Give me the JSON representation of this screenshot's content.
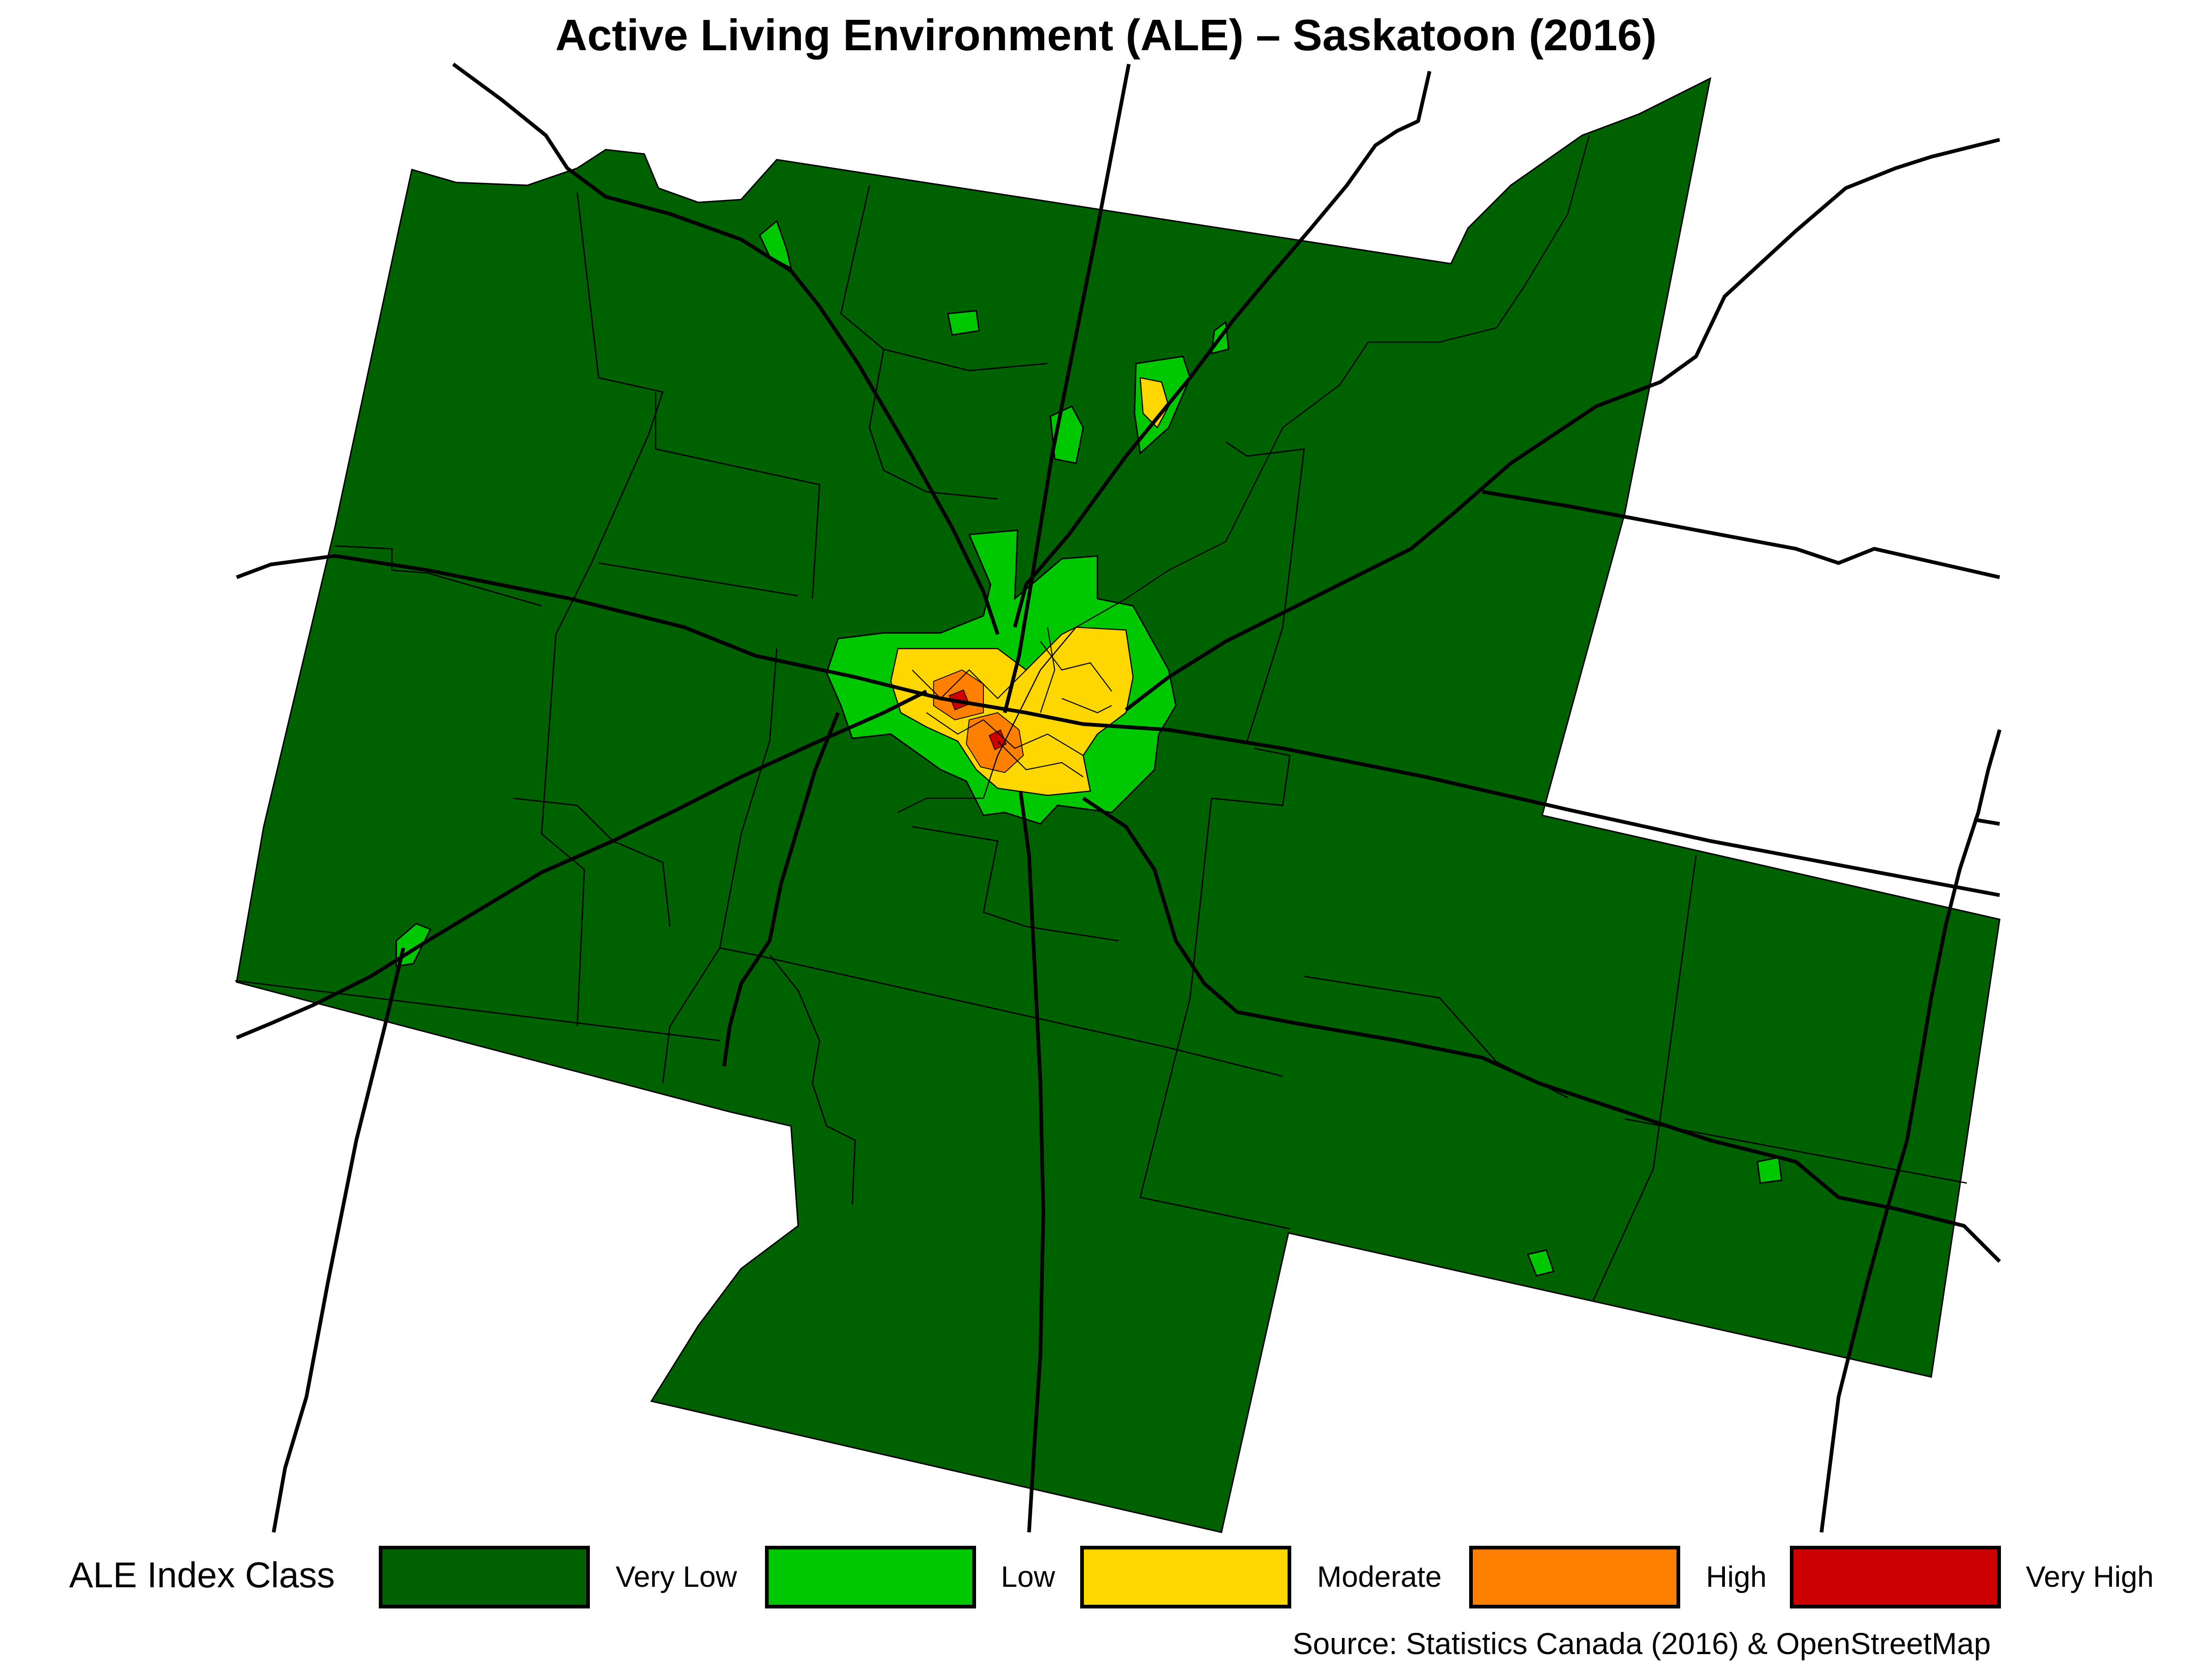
{
  "title": "Active Living Environment (ALE) – Saskatoon (2016)",
  "legend": {
    "title": "ALE Index Class",
    "classes": [
      {
        "label": "Very Low",
        "color": "#006100"
      },
      {
        "label": "Low",
        "color": "#00c800"
      },
      {
        "label": "Moderate",
        "color": "#ffd700"
      },
      {
        "label": "High",
        "color": "#ff8000"
      },
      {
        "label": "Very High",
        "color": "#cc0000"
      }
    ]
  },
  "source": "Source: Statistics Canada (2016) & OpenStreetMap",
  "map": {
    "region": "Saskatoon",
    "boundary_color": "#000000",
    "road_color": "#000000"
  }
}
